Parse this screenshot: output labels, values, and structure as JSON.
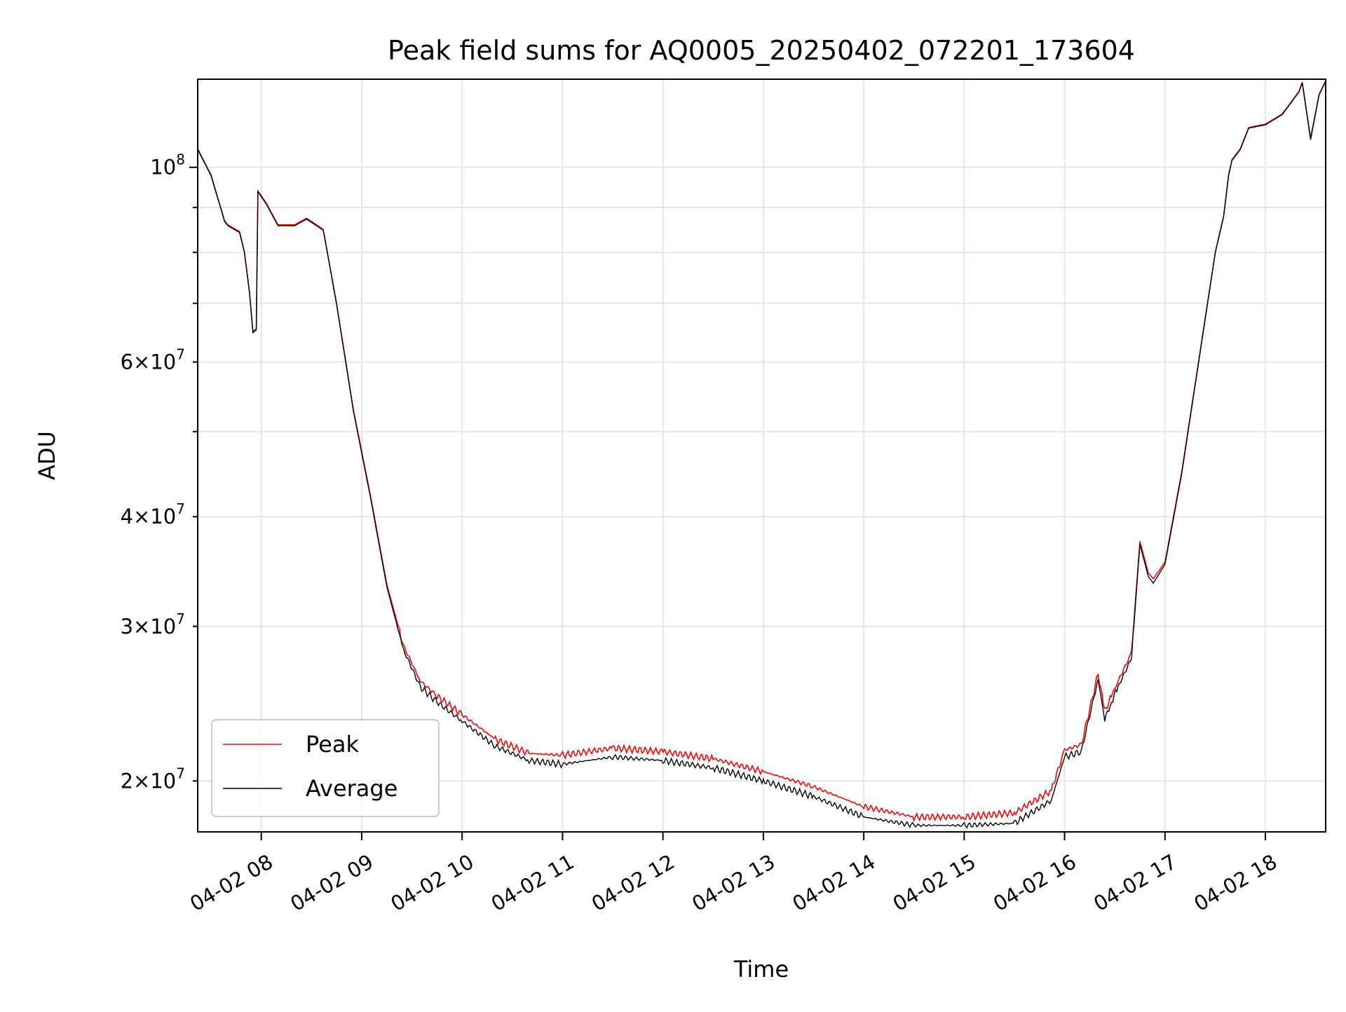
{
  "chart_data": {
    "type": "line",
    "title": "Peak field sums for AQ0005_20250402_072201_173604",
    "xlabel": "Time",
    "ylabel": "ADU",
    "xscale": "time",
    "yscale": "log",
    "grid": true,
    "legend_position": "lower-left",
    "x_range": [
      "2025-04-02 07:22",
      "2025-04-02 18:36"
    ],
    "ylim": [
      17500000,
      126000000
    ],
    "x_ticks": [
      {
        "value": "2025-04-02 08:00",
        "label": "04-02 08"
      },
      {
        "value": "2025-04-02 09:00",
        "label": "04-02 09"
      },
      {
        "value": "2025-04-02 10:00",
        "label": "04-02 10"
      },
      {
        "value": "2025-04-02 11:00",
        "label": "04-02 11"
      },
      {
        "value": "2025-04-02 12:00",
        "label": "04-02 12"
      },
      {
        "value": "2025-04-02 13:00",
        "label": "04-02 13"
      },
      {
        "value": "2025-04-02 14:00",
        "label": "04-02 14"
      },
      {
        "value": "2025-04-02 15:00",
        "label": "04-02 15"
      },
      {
        "value": "2025-04-02 16:00",
        "label": "04-02 16"
      },
      {
        "value": "2025-04-02 17:00",
        "label": "04-02 17"
      },
      {
        "value": "2025-04-02 18:00",
        "label": "04-02 18"
      }
    ],
    "y_major_ticks": [
      {
        "value": 100000000,
        "mantissa": "",
        "exponent": "8"
      }
    ],
    "y_minor_ticks": [
      {
        "value": 20000000,
        "mantissa": "2",
        "exponent": "7"
      },
      {
        "value": 30000000,
        "mantissa": "3",
        "exponent": "7"
      },
      {
        "value": 40000000,
        "mantissa": "4",
        "exponent": "7"
      },
      {
        "value": 50000000,
        "mantissa": "",
        "exponent": ""
      },
      {
        "value": 60000000,
        "mantissa": "6",
        "exponent": "7"
      },
      {
        "value": 70000000,
        "mantissa": "",
        "exponent": ""
      },
      {
        "value": 80000000,
        "mantissa": "",
        "exponent": ""
      },
      {
        "value": 90000000,
        "mantissa": "",
        "exponent": ""
      }
    ],
    "series": [
      {
        "name": "Peak",
        "color": "#ff0000",
        "x": [
          "2025-04-02 07:22",
          "2025-04-02 07:30",
          "2025-04-02 07:38",
          "2025-04-02 07:40",
          "2025-04-02 07:47",
          "2025-04-02 07:50",
          "2025-04-02 07:53",
          "2025-04-02 07:55",
          "2025-04-02 07:57",
          "2025-04-02 07:58",
          "2025-04-02 08:03",
          "2025-04-02 08:10",
          "2025-04-02 08:20",
          "2025-04-02 08:27",
          "2025-04-02 08:33",
          "2025-04-02 08:37",
          "2025-04-02 08:45",
          "2025-04-02 08:55",
          "2025-04-02 09:05",
          "2025-04-02 09:15",
          "2025-04-02 09:25",
          "2025-04-02 09:35",
          "2025-04-02 09:45",
          "2025-04-02 10:00",
          "2025-04-02 10:20",
          "2025-04-02 10:40",
          "2025-04-02 11:00",
          "2025-04-02 11:30",
          "2025-04-02 12:00",
          "2025-04-02 12:30",
          "2025-04-02 13:00",
          "2025-04-02 13:30",
          "2025-04-02 14:00",
          "2025-04-02 14:30",
          "2025-04-02 15:00",
          "2025-04-02 15:30",
          "2025-04-02 15:52",
          "2025-04-02 16:00",
          "2025-04-02 16:10",
          "2025-04-02 16:20",
          "2025-04-02 16:24",
          "2025-04-02 16:28",
          "2025-04-02 16:32",
          "2025-04-02 16:40",
          "2025-04-02 16:45",
          "2025-04-02 16:50",
          "2025-04-02 16:53",
          "2025-04-02 17:00",
          "2025-04-02 17:10",
          "2025-04-02 17:20",
          "2025-04-02 17:30",
          "2025-04-02 17:35",
          "2025-04-02 17:38",
          "2025-04-02 17:40",
          "2025-04-02 17:45",
          "2025-04-02 17:50",
          "2025-04-02 18:00",
          "2025-04-02 18:10",
          "2025-04-02 18:20",
          "2025-04-02 18:22",
          "2025-04-02 18:27",
          "2025-04-02 18:32",
          "2025-04-02 18:36"
        ],
        "values": [
          105000000,
          98000000,
          87000000,
          86000000,
          84500000,
          80000000,
          72000000,
          65000000,
          65500000,
          94000000,
          91000000,
          86000000,
          86000000,
          87500000,
          86000000,
          85000000,
          70000000,
          53000000,
          42500000,
          33500000,
          28500000,
          26000000,
          25000000,
          23800000,
          22300000,
          21500000,
          21400000,
          21800000,
          21600000,
          21200000,
          20500000,
          19700000,
          18700000,
          18200000,
          18200000,
          18400000,
          19500000,
          21700000,
          22000000,
          26500000,
          24000000,
          25000000,
          26000000,
          28000000,
          37500000,
          34500000,
          34000000,
          35500000,
          45000000,
          60000000,
          80000000,
          88000000,
          98000000,
          102000000,
          105000000,
          111000000,
          112000000,
          115000000,
          122000000,
          125000000,
          108000000,
          121000000,
          125500000
        ]
      },
      {
        "name": "Average",
        "color": "#000000",
        "x": [
          "2025-04-02 07:22",
          "2025-04-02 07:30",
          "2025-04-02 07:38",
          "2025-04-02 07:40",
          "2025-04-02 07:47",
          "2025-04-02 07:50",
          "2025-04-02 07:53",
          "2025-04-02 07:55",
          "2025-04-02 07:57",
          "2025-04-02 07:58",
          "2025-04-02 08:03",
          "2025-04-02 08:10",
          "2025-04-02 08:20",
          "2025-04-02 08:27",
          "2025-04-02 08:33",
          "2025-04-02 08:37",
          "2025-04-02 08:45",
          "2025-04-02 08:55",
          "2025-04-02 09:05",
          "2025-04-02 09:15",
          "2025-04-02 09:25",
          "2025-04-02 09:35",
          "2025-04-02 09:45",
          "2025-04-02 10:00",
          "2025-04-02 10:20",
          "2025-04-02 10:40",
          "2025-04-02 11:00",
          "2025-04-02 11:30",
          "2025-04-02 12:00",
          "2025-04-02 12:30",
          "2025-04-02 13:00",
          "2025-04-02 13:30",
          "2025-04-02 14:00",
          "2025-04-02 14:30",
          "2025-04-02 15:00",
          "2025-04-02 15:30",
          "2025-04-02 15:52",
          "2025-04-02 16:00",
          "2025-04-02 16:10",
          "2025-04-02 16:20",
          "2025-04-02 16:24",
          "2025-04-02 16:28",
          "2025-04-02 16:32",
          "2025-04-02 16:40",
          "2025-04-02 16:45",
          "2025-04-02 16:50",
          "2025-04-02 16:53",
          "2025-04-02 17:00",
          "2025-04-02 17:10",
          "2025-04-02 17:20",
          "2025-04-02 17:30",
          "2025-04-02 17:35",
          "2025-04-02 17:38",
          "2025-04-02 17:40",
          "2025-04-02 17:45",
          "2025-04-02 17:50",
          "2025-04-02 18:00",
          "2025-04-02 18:10",
          "2025-04-02 18:20",
          "2025-04-02 18:22",
          "2025-04-02 18:27",
          "2025-04-02 18:32",
          "2025-04-02 18:36"
        ],
        "values": [
          104800000,
          97800000,
          86800000,
          85800000,
          84300000,
          79800000,
          71800000,
          64800000,
          65300000,
          93800000,
          90800000,
          85800000,
          85800000,
          87300000,
          85800000,
          84800000,
          69800000,
          52800000,
          42300000,
          33300000,
          28200000,
          25600000,
          24600000,
          23400000,
          21900000,
          21100000,
          20900000,
          21300000,
          21100000,
          20700000,
          20000000,
          19200000,
          18200000,
          17800000,
          17800000,
          17900000,
          19000000,
          21300000,
          21600000,
          26100000,
          23500000,
          24600000,
          25600000,
          27600000,
          37200000,
          34200000,
          33600000,
          35300000,
          44800000,
          59800000,
          79800000,
          87800000,
          97800000,
          101800000,
          104800000,
          110800000,
          111800000,
          114800000,
          121800000,
          124800000,
          107500000,
          120800000,
          125300000
        ]
      }
    ]
  }
}
